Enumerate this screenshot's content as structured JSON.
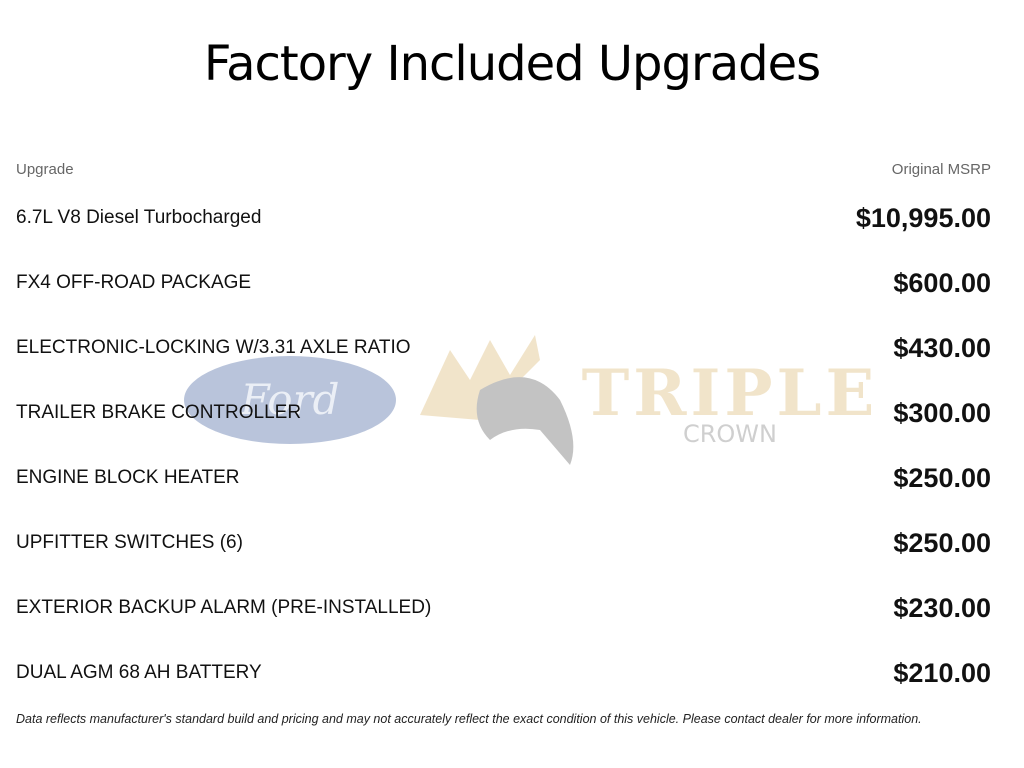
{
  "title": "Factory Included Upgrades",
  "columns": {
    "upgrade": "Upgrade",
    "msrp": "Original MSRP"
  },
  "rows": [
    {
      "name": "6.7L V8 Diesel Turbocharged",
      "price": "$10,995.00"
    },
    {
      "name": "FX4 OFF-ROAD PACKAGE",
      "price": "$600.00"
    },
    {
      "name": "ELECTRONIC-LOCKING W/3.31 AXLE RATIO",
      "price": "$430.00"
    },
    {
      "name": "TRAILER BRAKE CONTROLLER",
      "price": "$300.00"
    },
    {
      "name": "ENGINE BLOCK HEATER",
      "price": "$250.00"
    },
    {
      "name": "UPFITTER SWITCHES (6)",
      "price": "$250.00"
    },
    {
      "name": "EXTERIOR BACKUP ALARM (PRE-INSTALLED)",
      "price": "$230.00"
    },
    {
      "name": "DUAL AGM 68 AH BATTERY",
      "price": "$210.00"
    }
  ],
  "watermark": {
    "ford": "Ford",
    "brand": "TRIPLE",
    "sub": "CROWN"
  },
  "disclaimer": "Data reflects manufacturer's standard build and pricing and may not accurately reflect the exact condition of this vehicle. Please contact dealer for more information."
}
